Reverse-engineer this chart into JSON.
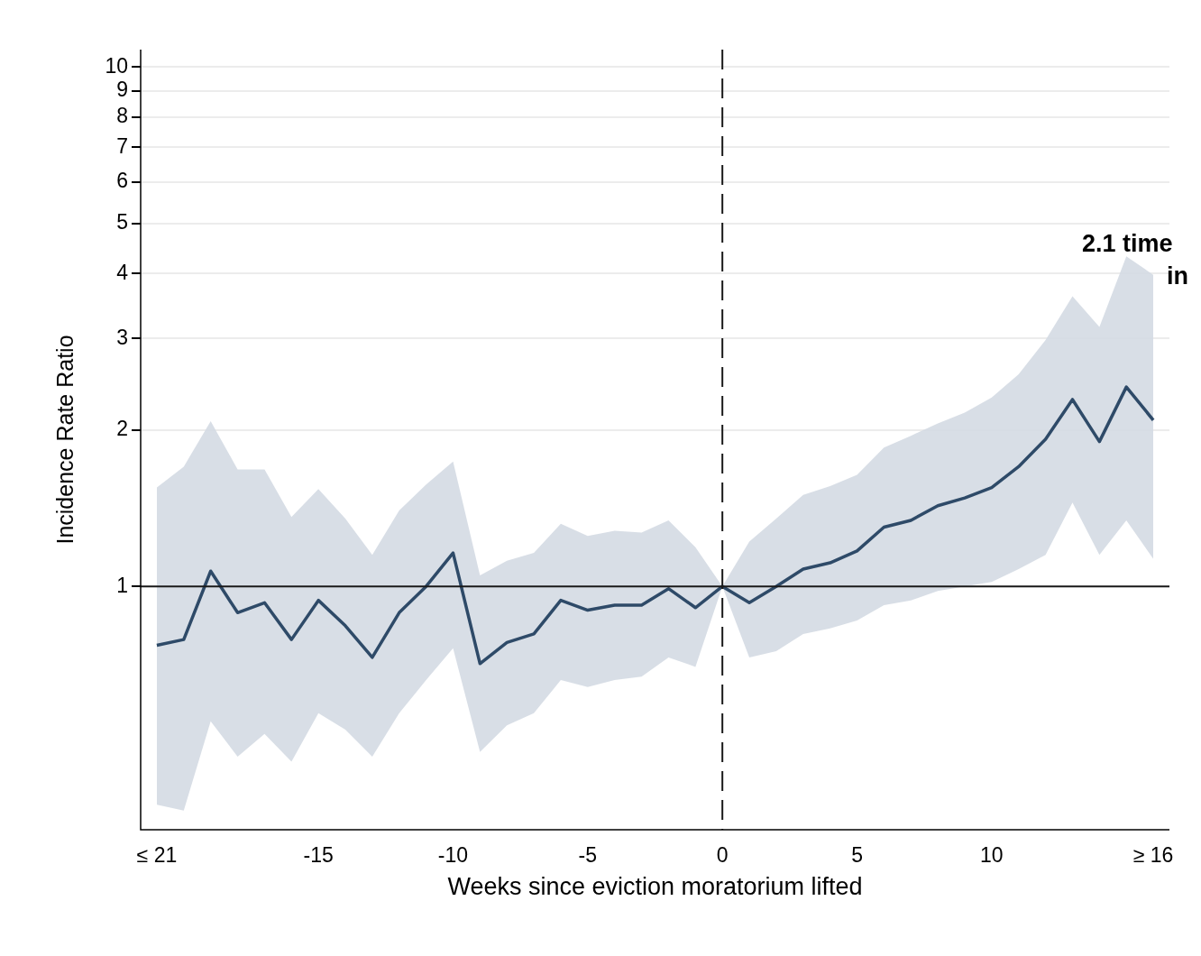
{
  "chart_data": {
    "type": "line",
    "xlabel": "Weeks since eviction moratorium lifted",
    "ylabel": "Incidence Rate Ratio",
    "x": [
      -21,
      -20,
      -19,
      -18,
      -17,
      -16,
      -15,
      -14,
      -13,
      -12,
      -11,
      -10,
      -9,
      -8,
      -7,
      -6,
      -5,
      -4,
      -3,
      -2,
      -1,
      0,
      1,
      2,
      3,
      4,
      5,
      6,
      7,
      8,
      9,
      10,
      11,
      12,
      13,
      14,
      15,
      16
    ],
    "series": [
      {
        "color": "#2e4a68",
        "values": [
          0.77,
          0.79,
          1.07,
          0.89,
          0.93,
          0.79,
          0.94,
          0.84,
          0.73,
          0.89,
          1.0,
          1.16,
          0.71,
          0.78,
          0.81,
          0.94,
          0.9,
          0.92,
          0.92,
          0.99,
          0.91,
          1.0,
          0.93,
          1.0,
          1.08,
          1.11,
          1.17,
          1.3,
          1.34,
          1.43,
          1.48,
          1.55,
          1.7,
          1.92,
          2.29,
          1.9,
          2.42,
          2.09
        ],
        "lower": [
          0.38,
          0.37,
          0.55,
          0.47,
          0.52,
          0.46,
          0.57,
          0.53,
          0.47,
          0.57,
          0.66,
          0.76,
          0.48,
          0.54,
          0.57,
          0.66,
          0.64,
          0.66,
          0.67,
          0.73,
          0.7,
          1.0,
          0.73,
          0.75,
          0.81,
          0.83,
          0.86,
          0.92,
          0.94,
          0.98,
          1.0,
          1.02,
          1.08,
          1.15,
          1.45,
          1.15,
          1.34,
          1.13
        ],
        "upper": [
          1.55,
          1.7,
          2.08,
          1.68,
          1.68,
          1.36,
          1.54,
          1.35,
          1.15,
          1.4,
          1.57,
          1.74,
          1.05,
          1.12,
          1.16,
          1.32,
          1.25,
          1.28,
          1.27,
          1.34,
          1.19,
          1.0,
          1.22,
          1.35,
          1.5,
          1.56,
          1.64,
          1.85,
          1.95,
          2.06,
          2.16,
          2.31,
          2.56,
          2.98,
          3.62,
          3.16,
          4.32,
          3.98
        ]
      }
    ],
    "log": "y",
    "xlim": [
      -21.6,
      16.6
    ],
    "ylim": [
      0.34,
      10.8
    ],
    "xticks": [
      {
        "value": -21,
        "label": "≤ 21"
      },
      -15,
      -10,
      -5,
      0,
      5,
      10,
      {
        "value": 16,
        "label": "≥ 16"
      }
    ],
    "yticks": [
      1,
      2,
      3,
      4,
      5,
      6,
      7,
      8,
      9,
      10
    ],
    "grid": "y",
    "ref_lines": [
      {
        "axis": "y",
        "value": 1,
        "color": "#1a1a1a",
        "line_style": "solid"
      },
      {
        "axis": "x",
        "value": 0,
        "color": "#1a1a1a",
        "line_style": "dashed"
      }
    ],
    "annotations": [
      "2.1 time",
      "in"
    ],
    "marker": "none",
    "line_style": "solid",
    "legend": false
  }
}
